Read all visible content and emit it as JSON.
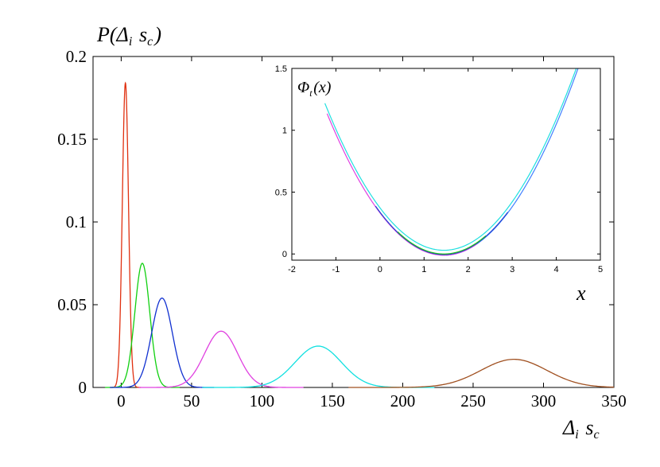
{
  "chart_data": [
    {
      "type": "line",
      "ylabel": "P(Δ_i s_c)",
      "xlabel": "Δ_i s_c",
      "xlim": [
        -20,
        350
      ],
      "ylim": [
        0,
        0.2
      ],
      "x_ticks": [
        "0",
        "50",
        "100",
        "150",
        "200",
        "250",
        "300",
        "350"
      ],
      "y_ticks": [
        "0",
        "0.05",
        "0.1",
        "0.15",
        "0.2"
      ],
      "series": [
        {
          "color": "#e03010",
          "peak_x": 3,
          "peak_y": 0.184,
          "std": 2.2
        },
        {
          "color": "#10d010",
          "peak_x": 15,
          "peak_y": 0.075,
          "std": 5.3
        },
        {
          "color": "#1030d0",
          "peak_x": 29,
          "peak_y": 0.054,
          "std": 7.4
        },
        {
          "color": "#e040e0",
          "peak_x": 71,
          "peak_y": 0.034,
          "std": 11.7
        },
        {
          "color": "#10e0e0",
          "peak_x": 140,
          "peak_y": 0.025,
          "std": 16.5
        },
        {
          "color": "#a05020",
          "peak_x": 279,
          "peak_y": 0.017,
          "std": 23.5
        }
      ],
      "grid": false
    },
    {
      "type": "line",
      "ylabel": "Φ_t(x)",
      "xlabel": "x",
      "xlim": [
        -2,
        5
      ],
      "ylim": [
        -0.05,
        1.5
      ],
      "x_ticks": [
        "-2",
        "-1",
        "0",
        "1",
        "2",
        "3",
        "4",
        "5"
      ],
      "y_ticks": [
        "0",
        "0.5",
        "1",
        "1.5"
      ],
      "series": [
        {
          "color": "#20e0e0",
          "x_min": -1.25,
          "x_max": 4.5,
          "vertex_x": 1.45,
          "vertex_y": 0.03,
          "a": 0.163
        },
        {
          "color": "#4080ff",
          "x_min": 1.5,
          "x_max": 4.5,
          "vertex_x": 1.45,
          "vertex_y": -0.01,
          "a": 0.163
        },
        {
          "color": "#e040e0",
          "x_min": -1.2,
          "x_max": 2.2,
          "vertex_x": 1.45,
          "vertex_y": -0.01,
          "a": 0.163
        },
        {
          "color": "#2040d0",
          "x_min": -0.1,
          "x_max": 2.9,
          "vertex_x": 1.45,
          "vertex_y": -0.005,
          "a": 0.163
        },
        {
          "color": "#20c020",
          "x_min": 0.4,
          "x_max": 2.4,
          "vertex_x": 1.45,
          "vertex_y": 0.0,
          "a": 0.163
        }
      ],
      "grid": false
    }
  ]
}
